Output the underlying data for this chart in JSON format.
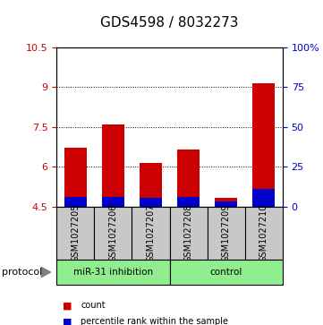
{
  "title": "GDS4598 / 8032273",
  "samples": [
    "GSM1027205",
    "GSM1027206",
    "GSM1027207",
    "GSM1027208",
    "GSM1027209",
    "GSM1027210"
  ],
  "red_tops": [
    6.7,
    7.6,
    6.15,
    6.65,
    4.82,
    9.15
  ],
  "blue_tops": [
    4.87,
    4.87,
    4.82,
    4.87,
    4.67,
    5.17
  ],
  "bar_bottom": 4.5,
  "ylim": [
    4.5,
    10.5
  ],
  "yticks_left": [
    4.5,
    6.0,
    7.5,
    9.0,
    10.5
  ],
  "ytick_labels_left": [
    "4.5",
    "6",
    "7.5",
    "9",
    "10.5"
  ],
  "yticks_right_pct": [
    0,
    25,
    50,
    75,
    100
  ],
  "ytick_labels_right": [
    "0",
    "25",
    "50",
    "75",
    "100%"
  ],
  "group_bg": "#90EE90",
  "sample_bg": "#C8C8C8",
  "red_color": "#CC0000",
  "blue_color": "#0000CC",
  "bar_width": 0.6,
  "grid_yticks": [
    6.0,
    7.5,
    9.0
  ],
  "title_fontsize": 11,
  "tick_fontsize": 8,
  "sample_fontsize": 7,
  "group_label_1": "miR-31 inhibition",
  "group_label_2": "control",
  "protocol_label": "protocol",
  "legend_count": "count",
  "legend_pct": "percentile rank within the sample"
}
